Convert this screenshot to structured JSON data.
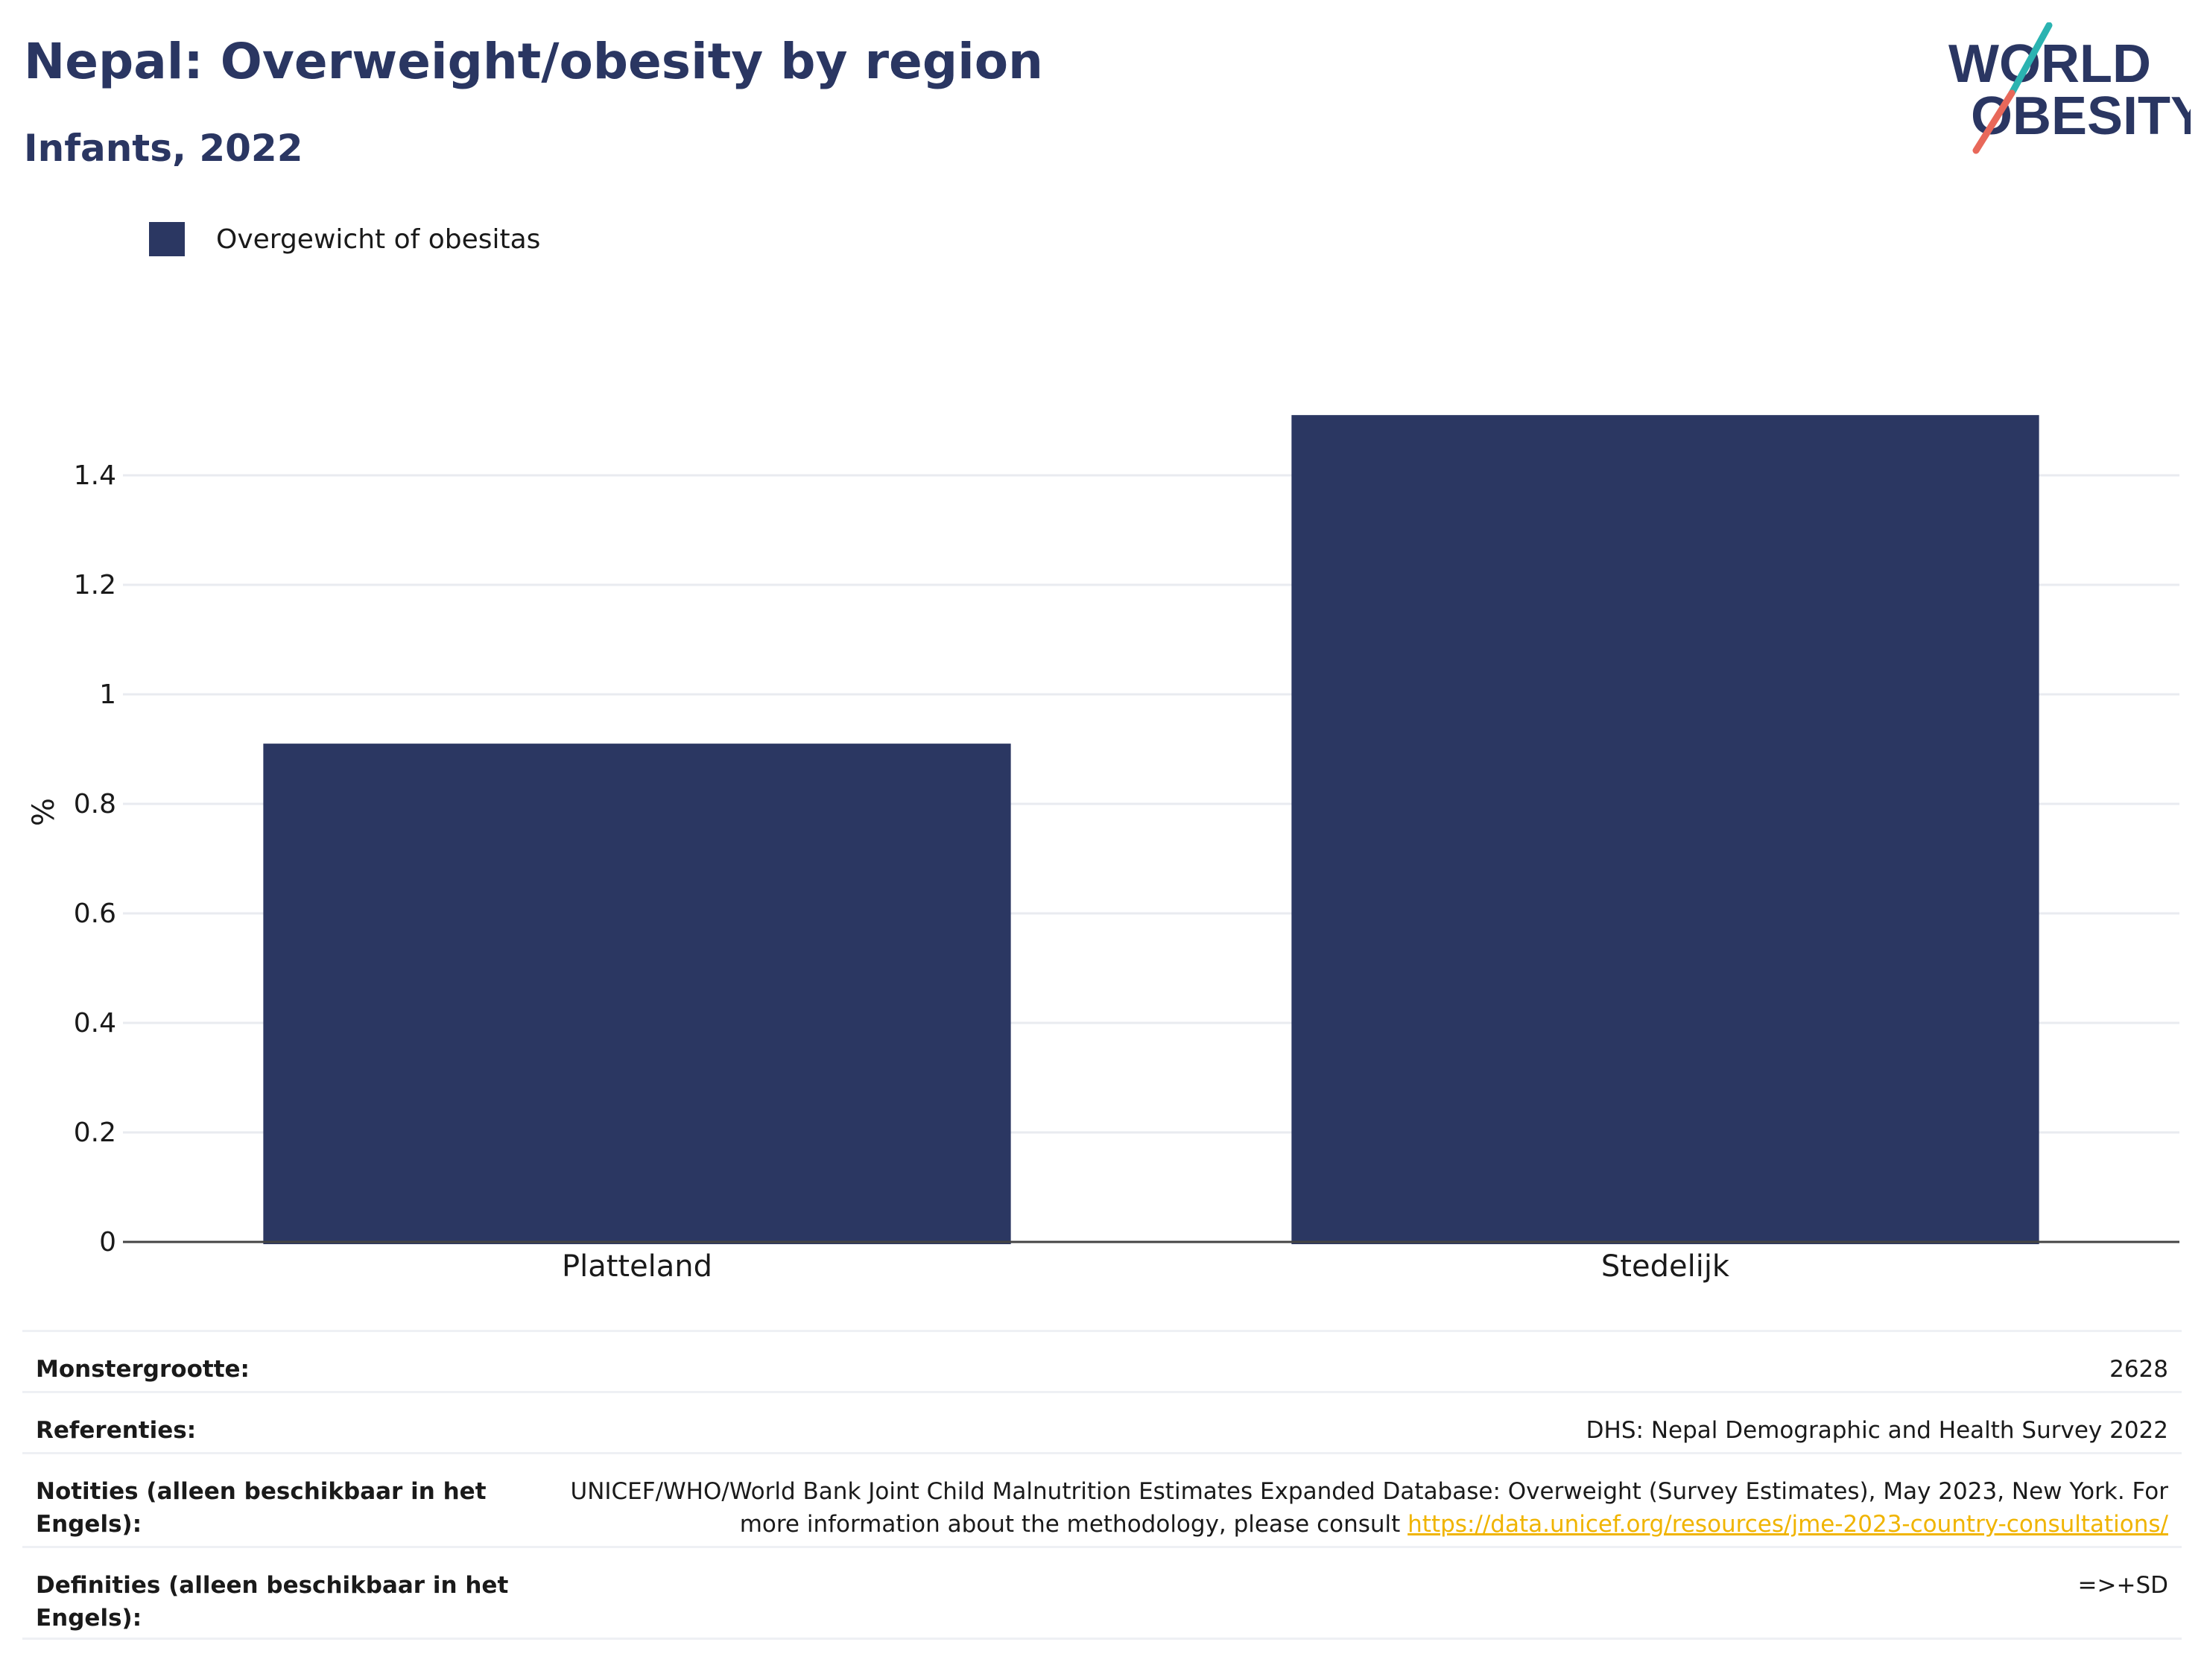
{
  "header": {
    "title": "Nepal: Overweight/obesity by region",
    "subtitle": "Infants, 2022"
  },
  "logo": {
    "line1": "WORLD",
    "line2": "OBESITY",
    "colors": {
      "text": "#2a3662",
      "slash_top": "#2bb3b1",
      "slash_bottom": "#e8685a"
    }
  },
  "legend": {
    "items": [
      {
        "label": "Overgewicht of obesitas",
        "color": "#2b3762"
      }
    ]
  },
  "chart_data": {
    "type": "bar",
    "categories": [
      "Platteland",
      "Stedelijk"
    ],
    "series": [
      {
        "name": "Overgewicht of obesitas",
        "values": [
          0.91,
          1.51
        ],
        "color": "#2b3762"
      }
    ],
    "ylabel": "%",
    "ylim": [
      0,
      1.6
    ],
    "yticks": [
      0,
      0.2,
      0.4,
      0.6,
      0.8,
      1,
      1.2,
      1.4
    ],
    "ytick_labels": [
      "0",
      "0.2",
      "0.4",
      "0.6",
      "0.8",
      "1",
      "1.2",
      "1.4"
    ],
    "grid": true
  },
  "info": {
    "sample_label": "Monstergrootte:",
    "sample_value": "2628",
    "refs_label": "Referenties:",
    "refs_value": "DHS: Nepal Demographic and Health Survey 2022",
    "notes_label": "Notities (alleen beschikbaar in het Engels):",
    "notes_text": "UNICEF/WHO/World Bank Joint Child Malnutrition Estimates Expanded Database: Overweight (Survey Estimates), May 2023, New York. For more information about the methodology, please consult",
    "notes_link": "https://data.unicef.org/resources/jme-2023-country-consultations/",
    "defs_label": "Definities (alleen beschikbaar in het Engels):",
    "defs_value": "=>+SD"
  }
}
